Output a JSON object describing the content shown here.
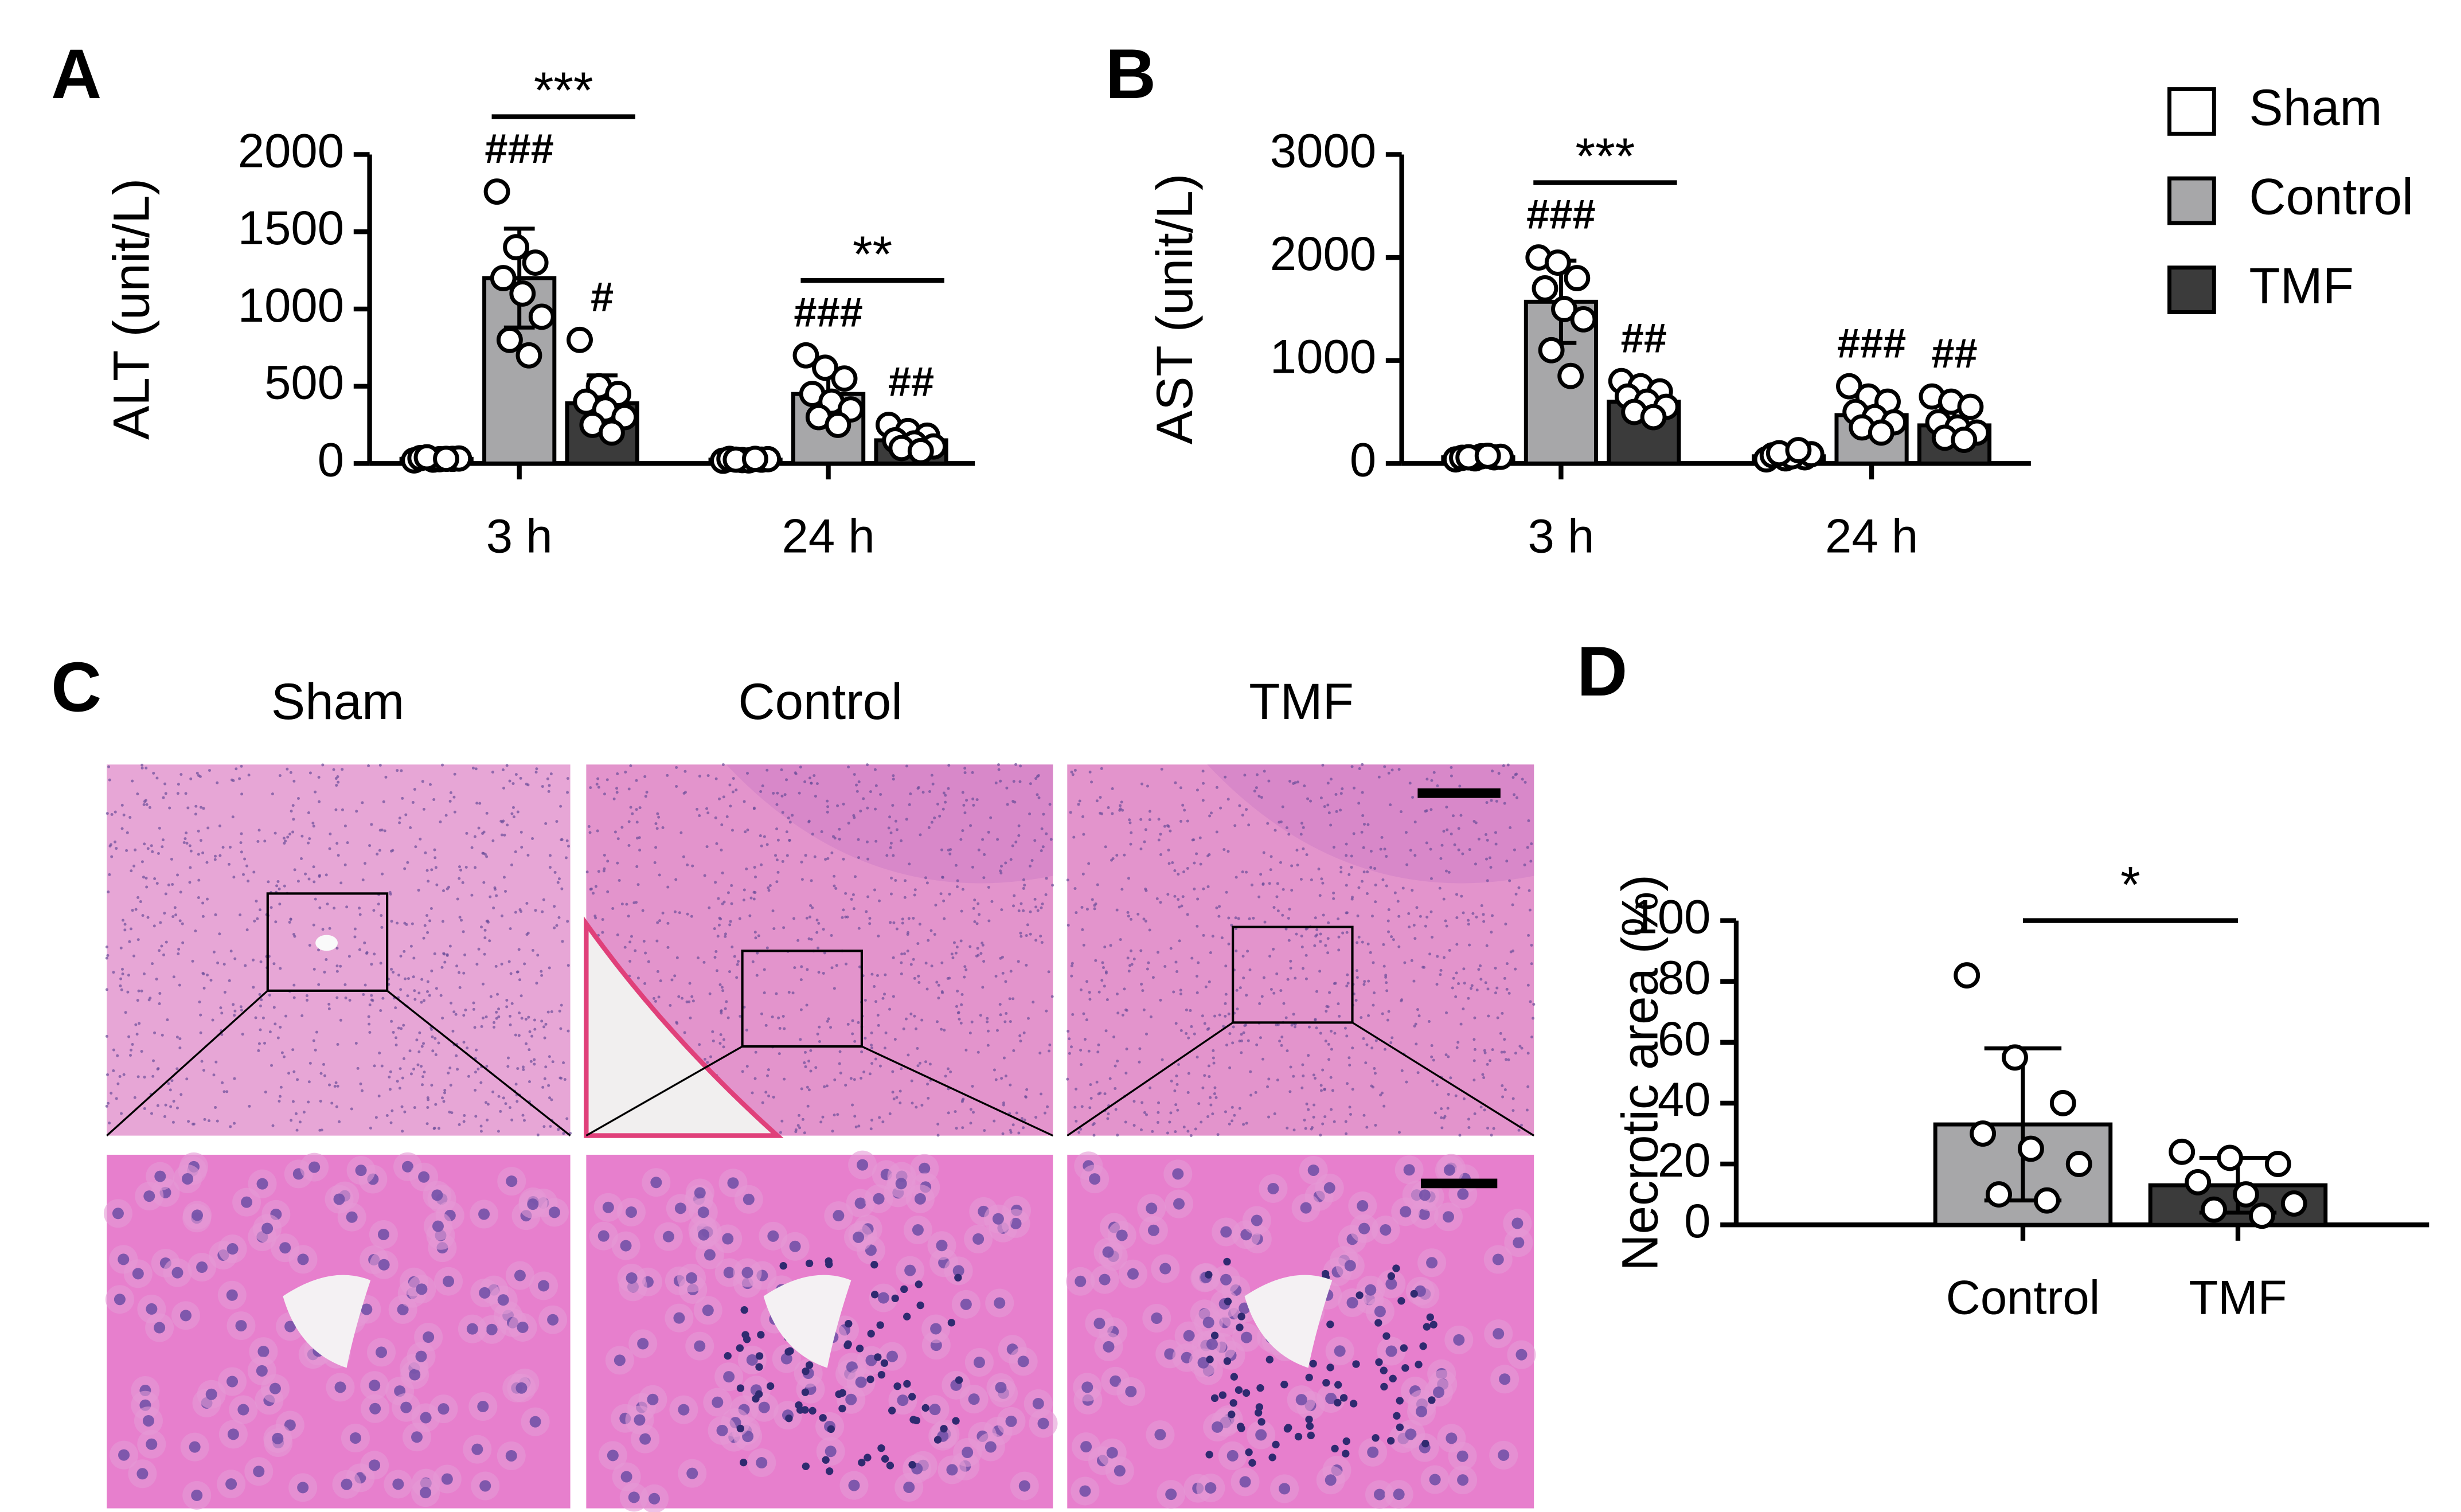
{
  "chart_data": [
    {
      "type": "bar",
      "label": "A",
      "y_label": "ALT (unit/L)",
      "categories": [
        "3 h",
        "24 h"
      ],
      "ylim": [
        0,
        2000
      ],
      "yticks": [
        0,
        500,
        1000,
        1500,
        2000
      ],
      "comparisons": [
        "***",
        "**"
      ],
      "series": [
        {
          "name": "Sham",
          "color": "#ffffff",
          "values": [
            30,
            25
          ],
          "errors": [
            10,
            8
          ],
          "points": [
            [
              20,
              25,
              30,
              35,
              28,
              32,
              40,
              30
            ],
            [
              18,
              22,
              25,
              30,
              20,
              28,
              25,
              30
            ]
          ]
        },
        {
          "name": "Control",
          "color": "#a7a7a9",
          "values": [
            1200,
            450
          ],
          "errors": [
            320,
            150
          ],
          "annotations": [
            "###",
            "###"
          ],
          "points": [
            [
              1760,
              1400,
              1300,
              1200,
              1100,
              950,
              800,
              700
            ],
            [
              700,
              620,
              550,
              450,
              400,
              350,
              300,
              250
            ]
          ]
        },
        {
          "name": "TMF",
          "color": "#3b3b3b",
          "values": [
            390,
            150
          ],
          "errors": [
            180,
            50
          ],
          "annotations": [
            "#",
            "##"
          ],
          "points": [
            [
              800,
              500,
              450,
              400,
              350,
              300,
              250,
              200
            ],
            [
              250,
              210,
              180,
              150,
              130,
              110,
              100,
              80
            ]
          ]
        }
      ]
    },
    {
      "type": "bar",
      "label": "B",
      "y_label": "AST (unit/L)",
      "categories": [
        "3 h",
        "24 h"
      ],
      "ylim": [
        0,
        3000
      ],
      "yticks": [
        0,
        1000,
        2000,
        3000
      ],
      "comparisons": [
        "***",
        null
      ],
      "series": [
        {
          "name": "Sham",
          "color": "#ffffff",
          "values": [
            60,
            70
          ],
          "errors": [
            15,
            20
          ],
          "points": [
            [
              40,
              50,
              60,
              55,
              70,
              65,
              60,
              75
            ],
            [
              40,
              50,
              60,
              80,
              70,
              90,
              100,
              130
            ]
          ]
        },
        {
          "name": "Control",
          "color": "#a7a7a9",
          "values": [
            1570,
            470
          ],
          "errors": [
            400,
            150
          ],
          "annotations": [
            "###",
            "###"
          ],
          "points": [
            [
              2000,
              1950,
              1800,
              1700,
              1500,
              1400,
              1100,
              850
            ],
            [
              750,
              650,
              600,
              500,
              450,
              400,
              350,
              300
            ]
          ]
        },
        {
          "name": "TMF",
          "color": "#3b3b3b",
          "values": [
            600,
            370
          ],
          "errors": [
            130,
            150
          ],
          "annotations": [
            "##",
            "##"
          ],
          "points": [
            [
              800,
              750,
              700,
              650,
              600,
              550,
              500,
              450
            ],
            [
              650,
              600,
              550,
              400,
              350,
              300,
              250,
              230
            ]
          ]
        }
      ]
    },
    {
      "type": "bar",
      "label": "D",
      "y_label": "Necrotic area (%)",
      "categories": [
        "Control",
        "TMF"
      ],
      "ylim": [
        0,
        100
      ],
      "yticks": [
        0,
        20,
        40,
        60,
        80,
        100
      ],
      "comparisons": [
        "*"
      ],
      "values": [
        33,
        13
      ],
      "errors": [
        25,
        9
      ],
      "colors": [
        "#a7a7a9",
        "#3b3b3b"
      ],
      "points": [
        [
          82,
          55,
          40,
          30,
          25,
          20,
          10,
          8
        ],
        [
          24,
          22,
          20,
          14,
          10,
          7,
          5,
          3
        ]
      ]
    }
  ],
  "histology": {
    "label": "C",
    "columns": [
      "Sham",
      "Control",
      "TMF"
    ]
  }
}
